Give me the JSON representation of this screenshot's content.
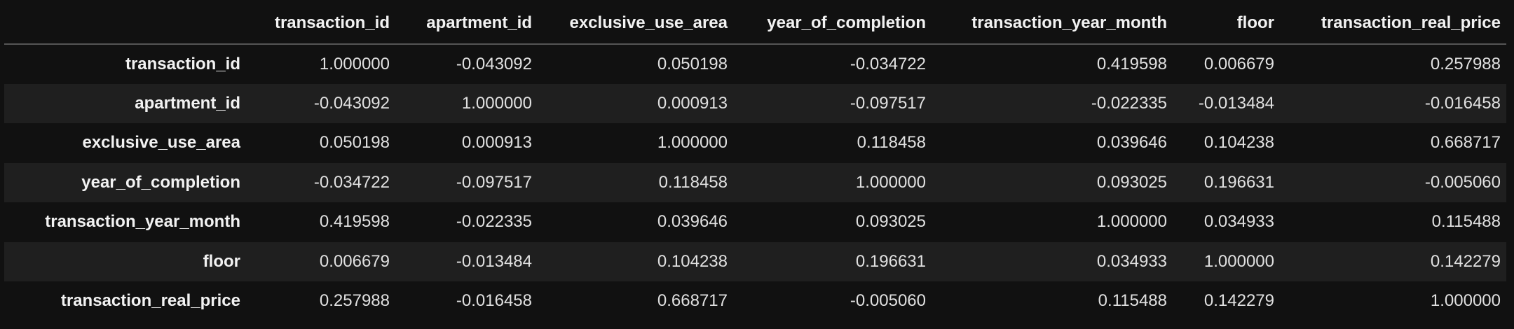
{
  "table": {
    "columns": [
      "transaction_id",
      "apartment_id",
      "exclusive_use_area",
      "year_of_completion",
      "transaction_year_month",
      "floor",
      "transaction_real_price"
    ],
    "rows": [
      {
        "label": "transaction_id",
        "values": [
          "1.000000",
          "-0.043092",
          "0.050198",
          "-0.034722",
          "0.419598",
          "0.006679",
          "0.257988"
        ]
      },
      {
        "label": "apartment_id",
        "values": [
          "-0.043092",
          "1.000000",
          "0.000913",
          "-0.097517",
          "-0.022335",
          "-0.013484",
          "-0.016458"
        ]
      },
      {
        "label": "exclusive_use_area",
        "values": [
          "0.050198",
          "0.000913",
          "1.000000",
          "0.118458",
          "0.039646",
          "0.104238",
          "0.668717"
        ]
      },
      {
        "label": "year_of_completion",
        "values": [
          "-0.034722",
          "-0.097517",
          "0.118458",
          "1.000000",
          "0.093025",
          "0.196631",
          "-0.005060"
        ]
      },
      {
        "label": "transaction_year_month",
        "values": [
          "0.419598",
          "-0.022335",
          "0.039646",
          "0.093025",
          "1.000000",
          "0.034933",
          "0.115488"
        ]
      },
      {
        "label": "floor",
        "values": [
          "0.006679",
          "-0.013484",
          "0.104238",
          "0.196631",
          "0.034933",
          "1.000000",
          "0.142279"
        ]
      },
      {
        "label": "transaction_real_price",
        "values": [
          "0.257988",
          "-0.016458",
          "0.668717",
          "-0.005060",
          "0.115488",
          "0.142279",
          "1.000000"
        ]
      }
    ]
  }
}
